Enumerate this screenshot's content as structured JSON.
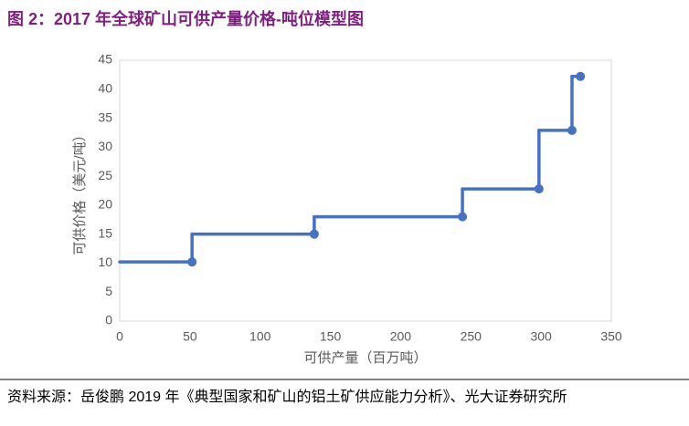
{
  "chart_data": {
    "type": "step",
    "title": "图 2：2017 年全球矿山可供产量价格-吨位模型图",
    "xlabel": "可供产量（百万吨）",
    "ylabel": "可供价格（美元/吨）",
    "source": "资料来源：岳俊鹏 2019 年《典型国家和矿山的铝土矿供应能力分析》、光大证券研究所",
    "x": [
      0,
      51.5,
      138.5,
      244,
      298.5,
      322,
      328
    ],
    "values": [
      10.2,
      10.2,
      15,
      18,
      22.8,
      32.9,
      42.2
    ],
    "color": "#4472c4",
    "xlim": [
      0,
      350
    ],
    "xticks": [
      0,
      50,
      100,
      150,
      200,
      250,
      300,
      350
    ],
    "ylim": [
      0,
      45
    ],
    "yticks": [
      0,
      5,
      10,
      15,
      20,
      25,
      30,
      35,
      40,
      45
    ],
    "grid": false
  }
}
